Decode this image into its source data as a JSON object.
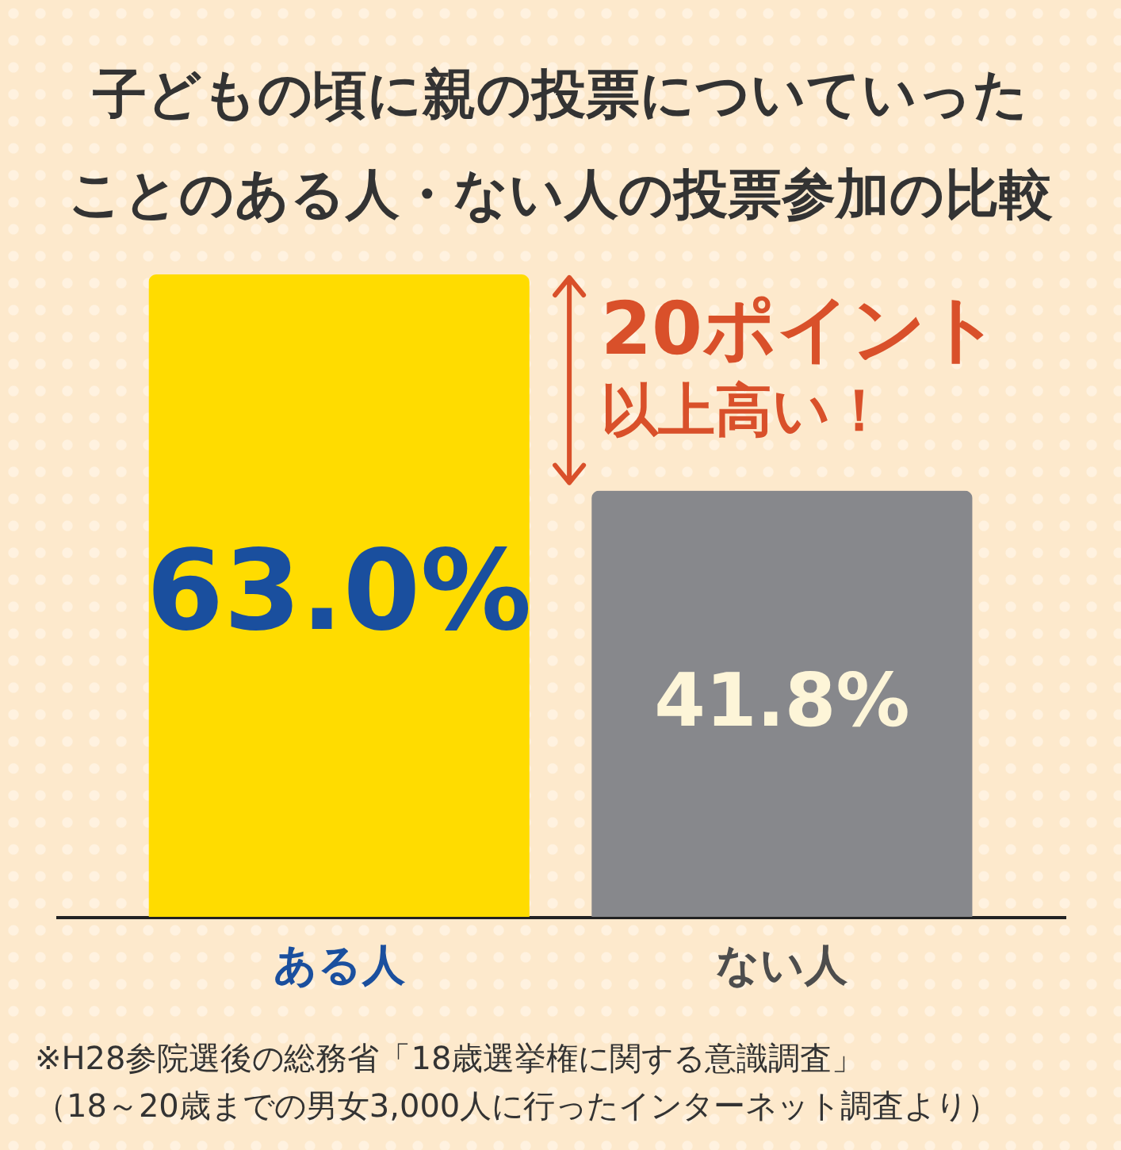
{
  "chart_data": {
    "type": "bar",
    "title": "子どもの頃に親の投票についていったことのある人・ない人の投票参加の比較",
    "categories": [
      "ある人",
      "ない人"
    ],
    "values": [
      63.0,
      41.8
    ],
    "colors": [
      "#ffdc00",
      "#87888c"
    ],
    "value_labels": [
      "63.0%",
      "41.8%"
    ],
    "tick_labels": "x",
    "annotations": [
      "20ポイント",
      "以上高い！",
      "※H28参院選後の総務省「18歳選挙権に関する意識調査」",
      "（18～20歳までの男女3,000人に行ったインターネット調査より）"
    ]
  }
}
